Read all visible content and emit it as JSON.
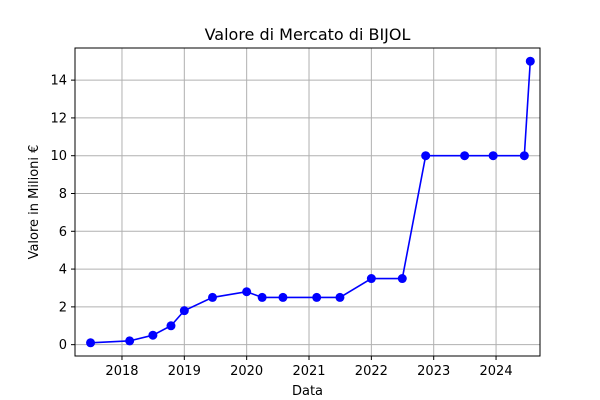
{
  "chart_data": {
    "type": "line",
    "title": "Valore di Mercato di BIJOL",
    "xlabel": "Data",
    "ylabel": "Valore in Milioni €",
    "x_axis_type": "date",
    "xlim": [
      "2017-04-01",
      "2024-09-15"
    ],
    "ylim": [
      -0.6,
      15.7
    ],
    "x_ticks": [
      "2018",
      "2019",
      "2020",
      "2021",
      "2022",
      "2023",
      "2024"
    ],
    "y_ticks": [
      0,
      2,
      4,
      6,
      8,
      10,
      12,
      14
    ],
    "grid": true,
    "line_color": "#0000ff",
    "marker": "circle",
    "series": [
      {
        "x": [
          "2017-07-01",
          "2018-02-15",
          "2018-07-01",
          "2018-10-15",
          "2019-01-01",
          "2019-06-15",
          "2020-01-01",
          "2020-04-01",
          "2020-08-01",
          "2021-02-15",
          "2021-07-01",
          "2022-01-01",
          "2022-07-01",
          "2022-11-15",
          "2023-07-01",
          "2023-12-15",
          "2024-06-15",
          "2024-07-20"
        ],
        "y": [
          0.1,
          0.2,
          0.5,
          1.0,
          1.8,
          2.5,
          2.8,
          2.5,
          2.5,
          2.5,
          2.5,
          3.5,
          3.5,
          10.0,
          10.0,
          10.0,
          10.0,
          15.0
        ]
      }
    ]
  }
}
